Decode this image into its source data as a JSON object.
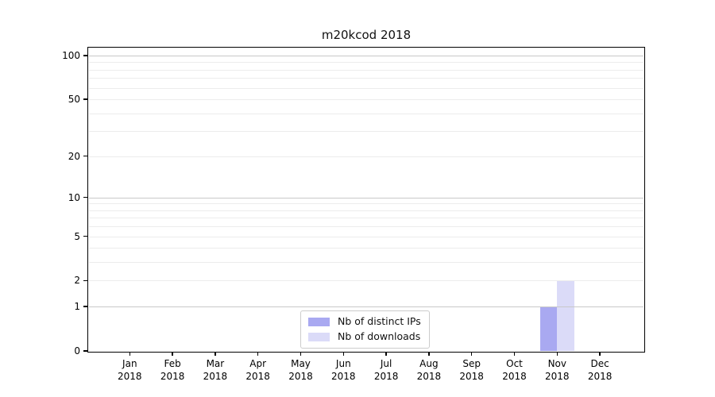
{
  "chart_data": {
    "type": "bar",
    "title": "m20kcod 2018",
    "categories": [
      "Jan 2018",
      "Feb 2018",
      "Mar 2018",
      "Apr 2018",
      "May 2018",
      "Jun 2018",
      "Jul 2018",
      "Aug 2018",
      "Sep 2018",
      "Oct 2018",
      "Nov 2018",
      "Dec 2018"
    ],
    "series": [
      {
        "name": "Nb of distinct IPs",
        "color": "#a9a9f1",
        "values": [
          0,
          0,
          0,
          0,
          0,
          0,
          0,
          0,
          0,
          0,
          1,
          0
        ]
      },
      {
        "name": "Nb of downloads",
        "color": "#dbdbf8",
        "values": [
          0,
          0,
          0,
          0,
          0,
          0,
          0,
          0,
          0,
          0,
          2,
          0
        ]
      }
    ],
    "xlabel": "",
    "ylabel": "",
    "yscale": "log1p",
    "ylim": [
      0,
      112
    ],
    "yticks": [
      0,
      1,
      2,
      5,
      10,
      20,
      50,
      100
    ],
    "grid": "both",
    "legend_position": "lower center"
  },
  "colors": {
    "major_grid": "#c8c8c8",
    "minor_grid": "#ececec",
    "axis": "#000000",
    "tick_label": "#000000",
    "legend_border": "#cccccc"
  }
}
